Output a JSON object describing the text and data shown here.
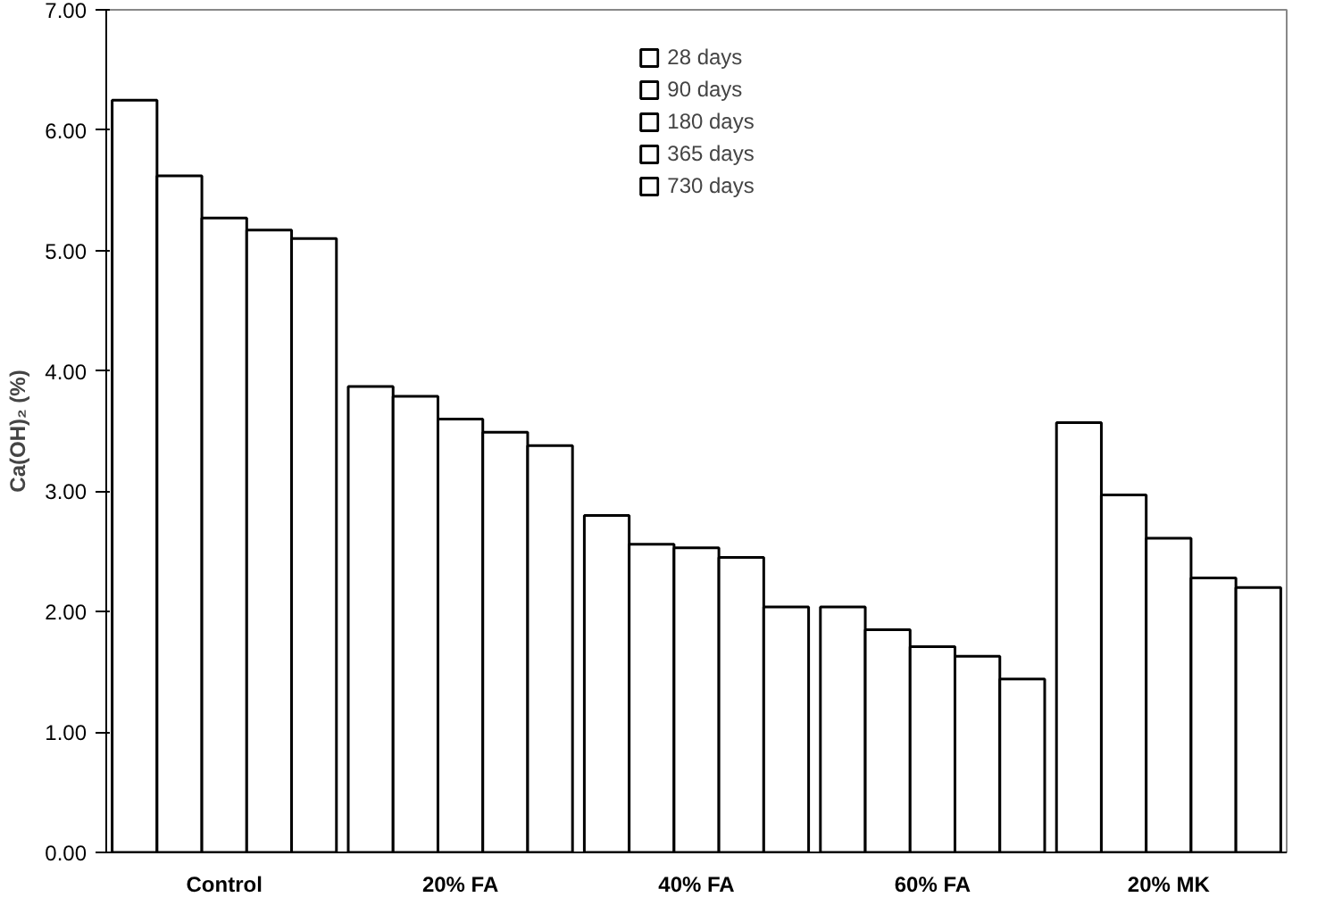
{
  "chart_data": {
    "type": "bar",
    "ylabel": "Ca(OH)₂ (%)",
    "categories": [
      "Control",
      "20% FA",
      "40% FA",
      "60% FA",
      "20% MK"
    ],
    "series": [
      {
        "name": "28 days",
        "color": "#ffffff",
        "values": [
          6.25,
          3.87,
          2.8,
          2.04,
          3.57
        ]
      },
      {
        "name": "90 days",
        "color": "#ffffff",
        "values": [
          5.62,
          3.79,
          2.56,
          1.85,
          2.97
        ]
      },
      {
        "name": "180 days",
        "color": "#ffffff",
        "values": [
          5.27,
          3.6,
          2.53,
          1.71,
          2.61
        ]
      },
      {
        "name": "365 days",
        "color": "#ffffff",
        "values": [
          5.17,
          3.49,
          2.45,
          1.63,
          2.28
        ]
      },
      {
        "name": "730 days",
        "color": "#ffffff",
        "values": [
          5.1,
          3.38,
          2.04,
          1.44,
          2.2
        ]
      }
    ],
    "ylim": [
      0,
      7
    ],
    "yticks": [
      {
        "value": 0,
        "label": "0.00"
      },
      {
        "value": 1,
        "label": "1.00"
      },
      {
        "value": 2,
        "label": "2.00"
      },
      {
        "value": 3,
        "label": "3.00"
      },
      {
        "value": 4,
        "label": "4.00"
      },
      {
        "value": 5,
        "label": "5.00"
      },
      {
        "value": 6,
        "label": "6.00"
      },
      {
        "value": 7,
        "label": "7.00"
      }
    ],
    "grid": false,
    "legend": "top"
  }
}
